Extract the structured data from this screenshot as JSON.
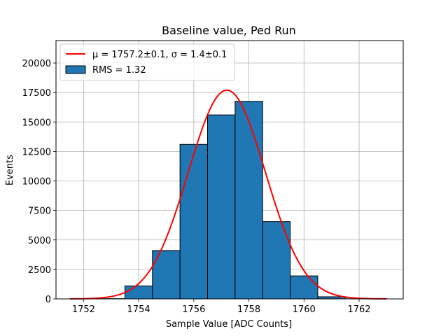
{
  "chart_data": {
    "type": "bar",
    "title": "Baseline value, Ped Run",
    "xlabel": "Sample Value [ADC Counts]",
    "ylabel": "Events",
    "xlim": [
      1751.0,
      1763.6
    ],
    "ylim": [
      0,
      21900
    ],
    "grid": true,
    "xticks": [
      1752,
      1754,
      1756,
      1758,
      1760,
      1762
    ],
    "yticks": [
      0,
      2500,
      5000,
      7500,
      10000,
      12500,
      15000,
      17500,
      20000
    ],
    "xtick_labels": [
      "1752",
      "1754",
      "1756",
      "1758",
      "1760",
      "1762"
    ],
    "ytick_labels": [
      "0",
      "2500",
      "5000",
      "7500",
      "10000",
      "12500",
      "15000",
      "17500",
      "20000"
    ],
    "histogram": {
      "name": "RMS = 1.32",
      "color": "#1f77b4",
      "edge_color": "#000000",
      "bins": [
        {
          "x0": 1751.5,
          "x1": 1752.5,
          "value": 0
        },
        {
          "x0": 1752.5,
          "x1": 1753.5,
          "value": 20
        },
        {
          "x0": 1753.5,
          "x1": 1754.5,
          "value": 1100
        },
        {
          "x0": 1754.5,
          "x1": 1755.5,
          "value": 4100
        },
        {
          "x0": 1755.5,
          "x1": 1756.5,
          "value": 13100
        },
        {
          "x0": 1756.5,
          "x1": 1757.5,
          "value": 15600
        },
        {
          "x0": 1757.5,
          "x1": 1758.5,
          "value": 16750
        },
        {
          "x0": 1758.5,
          "x1": 1759.5,
          "value": 6550
        },
        {
          "x0": 1759.5,
          "x1": 1760.5,
          "value": 1950
        },
        {
          "x0": 1760.5,
          "x1": 1761.5,
          "value": 180
        },
        {
          "x0": 1761.5,
          "x1": 1762.5,
          "value": 10
        }
      ]
    },
    "fit": {
      "name": "μ = 1757.2±0.1, σ = 1.4±0.1",
      "type": "gaussian",
      "color": "#ff0000",
      "mu": 1757.2,
      "sigma": 1.4,
      "amplitude": 17700,
      "x_range": [
        1751.5,
        1763.0
      ]
    },
    "legend_position": "upper-left",
    "legend": [
      {
        "label": "μ = 1757.2±0.1, σ = 1.4±0.1",
        "kind": "line",
        "color": "#ff0000"
      },
      {
        "label": "RMS = 1.32",
        "kind": "patch",
        "color": "#1f77b4"
      }
    ]
  }
}
